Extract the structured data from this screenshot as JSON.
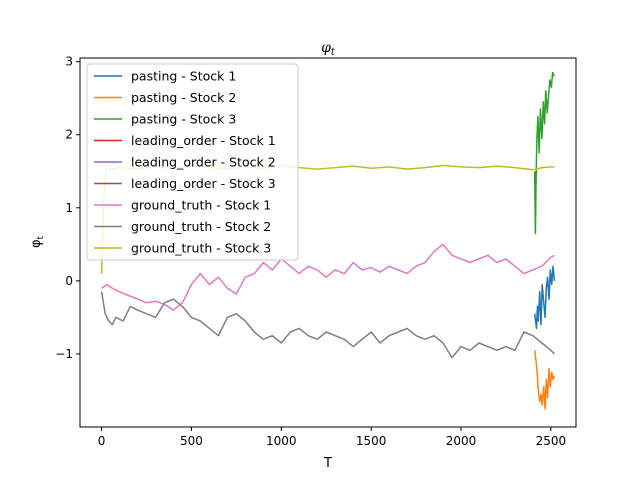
{
  "chart_data": {
    "type": "line",
    "title": "φ",
    "title_sub": "t",
    "xlabel": "T",
    "ylabel": "φ",
    "ylabel_sub": "t",
    "xlim": [
      -120,
      2640
    ],
    "ylim": [
      -2.0,
      3.05
    ],
    "xticks": [
      0,
      500,
      1000,
      1500,
      2000,
      2500
    ],
    "yticks": [
      -1,
      0,
      1,
      2,
      3
    ],
    "grid": false,
    "legend_position": "top-left",
    "series": [
      {
        "name": "pasting - Stock 1",
        "color": "#1f77b4",
        "x": [
          2410,
          2420,
          2425,
          2430,
          2438,
          2445,
          2452,
          2460,
          2468,
          2475,
          2482,
          2490,
          2497,
          2505,
          2512,
          2520
        ],
        "y": [
          -0.45,
          -0.65,
          -0.35,
          -0.55,
          -0.15,
          -0.6,
          -0.05,
          -0.3,
          -0.5,
          -0.1,
          0.05,
          -0.25,
          0.15,
          -0.05,
          0.2,
          0.0
        ]
      },
      {
        "name": "pasting - Stock 2",
        "color": "#ff7f0e",
        "x": [
          2410,
          2420,
          2425,
          2430,
          2438,
          2445,
          2452,
          2460,
          2468,
          2475,
          2482,
          2490,
          2497,
          2505,
          2512,
          2520
        ],
        "y": [
          -0.95,
          -1.15,
          -1.3,
          -1.5,
          -1.65,
          -1.55,
          -1.7,
          -1.45,
          -1.75,
          -1.35,
          -1.6,
          -1.2,
          -1.45,
          -1.25,
          -1.35,
          -1.3
        ]
      },
      {
        "name": "pasting - Stock 3",
        "color": "#2ca02c",
        "x": [
          2410,
          2414,
          2418,
          2422,
          2428,
          2435,
          2442,
          2450,
          2458,
          2465,
          2472,
          2480,
          2488,
          2495,
          2503,
          2510,
          2520
        ],
        "y": [
          1.5,
          0.65,
          1.4,
          1.9,
          2.25,
          1.75,
          2.35,
          1.95,
          2.45,
          2.15,
          2.6,
          2.3,
          2.55,
          2.75,
          2.65,
          2.85,
          2.8
        ]
      },
      {
        "name": "leading_order - Stock 1",
        "color": "#d62728",
        "x": [],
        "y": []
      },
      {
        "name": "leading_order - Stock 2",
        "color": "#9467bd",
        "x": [],
        "y": []
      },
      {
        "name": "leading_order - Stock 3",
        "color": "#8c564b",
        "x": [],
        "y": []
      },
      {
        "name": "ground_truth - Stock 1",
        "color": "#e377c2",
        "x": [
          0,
          30,
          60,
          100,
          150,
          200,
          250,
          300,
          350,
          400,
          450,
          500,
          550,
          600,
          650,
          700,
          750,
          800,
          850,
          900,
          950,
          1000,
          1050,
          1100,
          1150,
          1200,
          1250,
          1300,
          1350,
          1400,
          1450,
          1500,
          1550,
          1600,
          1650,
          1700,
          1750,
          1800,
          1850,
          1900,
          1950,
          2000,
          2050,
          2100,
          2150,
          2200,
          2250,
          2300,
          2350,
          2400,
          2450,
          2500,
          2520
        ],
        "y": [
          -0.1,
          -0.05,
          -0.1,
          -0.15,
          -0.2,
          -0.25,
          -0.3,
          -0.28,
          -0.32,
          -0.4,
          -0.3,
          -0.05,
          0.1,
          -0.05,
          0.05,
          -0.1,
          -0.18,
          0.05,
          0.1,
          0.25,
          0.15,
          0.3,
          0.2,
          0.1,
          0.2,
          0.15,
          0.05,
          0.15,
          0.1,
          0.25,
          0.15,
          0.18,
          0.12,
          0.2,
          0.15,
          0.1,
          0.2,
          0.25,
          0.4,
          0.5,
          0.35,
          0.3,
          0.25,
          0.3,
          0.35,
          0.25,
          0.3,
          0.2,
          0.1,
          0.15,
          0.2,
          0.32,
          0.35
        ]
      },
      {
        "name": "ground_truth - Stock 2",
        "color": "#7f7f7f",
        "x": [
          0,
          20,
          40,
          60,
          80,
          120,
          160,
          200,
          250,
          300,
          350,
          400,
          450,
          500,
          550,
          600,
          650,
          700,
          750,
          800,
          850,
          900,
          950,
          1000,
          1050,
          1100,
          1150,
          1200,
          1250,
          1300,
          1350,
          1400,
          1450,
          1500,
          1550,
          1600,
          1650,
          1700,
          1750,
          1800,
          1850,
          1900,
          1950,
          2000,
          2050,
          2100,
          2150,
          2200,
          2250,
          2300,
          2350,
          2400,
          2450,
          2500,
          2520
        ],
        "y": [
          -0.15,
          -0.45,
          -0.55,
          -0.6,
          -0.5,
          -0.55,
          -0.35,
          -0.4,
          -0.45,
          -0.5,
          -0.3,
          -0.25,
          -0.35,
          -0.5,
          -0.55,
          -0.65,
          -0.75,
          -0.5,
          -0.45,
          -0.55,
          -0.7,
          -0.8,
          -0.75,
          -0.85,
          -0.7,
          -0.65,
          -0.75,
          -0.8,
          -0.7,
          -0.75,
          -0.8,
          -0.9,
          -0.8,
          -0.7,
          -0.85,
          -0.75,
          -0.7,
          -0.65,
          -0.75,
          -0.8,
          -0.75,
          -0.85,
          -1.05,
          -0.9,
          -0.95,
          -0.85,
          -0.9,
          -0.95,
          -0.9,
          -0.95,
          -0.7,
          -0.75,
          -0.85,
          -0.95,
          -1.0
        ]
      },
      {
        "name": "ground_truth - Stock 3",
        "color": "#bcbd22",
        "x": [
          0,
          10,
          20,
          30,
          50,
          100,
          200,
          300,
          400,
          500,
          600,
          700,
          800,
          900,
          1000,
          1100,
          1200,
          1300,
          1400,
          1500,
          1600,
          1700,
          1800,
          1900,
          2000,
          2100,
          2200,
          2300,
          2400,
          2450,
          2500,
          2520
        ],
        "y": [
          0.1,
          1.0,
          1.45,
          1.55,
          1.52,
          1.55,
          1.53,
          1.56,
          1.54,
          1.57,
          1.55,
          1.53,
          1.56,
          1.54,
          1.57,
          1.55,
          1.53,
          1.55,
          1.57,
          1.54,
          1.56,
          1.53,
          1.55,
          1.58,
          1.56,
          1.55,
          1.57,
          1.55,
          1.52,
          1.55,
          1.56,
          1.56
        ]
      }
    ]
  }
}
